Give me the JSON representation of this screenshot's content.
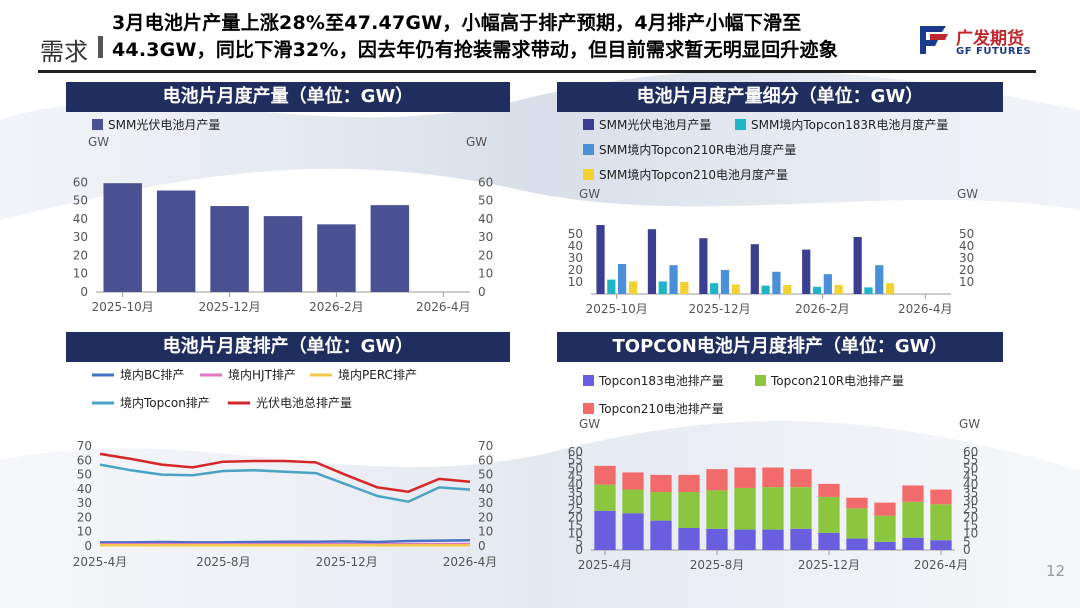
{
  "header": {
    "section": "需求",
    "line1": "3月电池片产量上涨28%至47.47GW，小幅高于排产预期，4月排产小幅下滑至",
    "line2": "44.3GW，同比下滑32%，因去年仍有抢装需求带动，但目前需求暂无明显回升迹象",
    "logo_cn": "广发期货",
    "logo_en": "GF FUTURES"
  },
  "page_number": "12",
  "colors": {
    "navy": "#1f2e5e",
    "accent_red": "#c0282d"
  },
  "chart_data": [
    {
      "id": "c1",
      "type": "bar",
      "title": "电池片月度产量（单位：GW）",
      "unit_left": "GW",
      "unit_right": "GW",
      "ylim": [
        0,
        70
      ],
      "yticks": [
        0,
        10,
        20,
        30,
        40,
        50,
        60
      ],
      "x_tick_labels": [
        "2025-10月",
        "2025-12月",
        "2026-2月",
        "2026-4月"
      ],
      "x_tick_index": [
        0,
        2,
        4,
        6
      ],
      "n_slots": 7,
      "series": [
        {
          "name": "SMM光伏电池月产量",
          "color": "#4a5192",
          "values": [
            59.5,
            55.5,
            47,
            41.5,
            37,
            47.5,
            null
          ]
        }
      ]
    },
    {
      "id": "c2",
      "type": "bar",
      "title": "电池片月度产量细分（单位：GW）",
      "unit_left": "GW",
      "unit_right": "GW",
      "ylim": [
        0,
        60
      ],
      "yticks": [
        10,
        20,
        30,
        40,
        50
      ],
      "x_tick_labels": [
        "2025-10月",
        "2025-12月",
        "2026-2月",
        "2026-4月"
      ],
      "x_tick_index": [
        0,
        2,
        4,
        6
      ],
      "n_slots": 7,
      "series": [
        {
          "name": "SMM光伏电池月产量",
          "color": "#3a3f8f",
          "values": [
            57.5,
            54,
            46.5,
            41.5,
            37,
            47.5,
            null
          ]
        },
        {
          "name": "SMM境内Topcon183R电池月度产量",
          "color": "#1fb5c4",
          "values": [
            12,
            10.5,
            9,
            7,
            6,
            5.5,
            null
          ]
        },
        {
          "name": "SMM境内Topcon210R电池月度产量",
          "color": "#4a90d9",
          "values": [
            25,
            24,
            20,
            18.5,
            16.5,
            24,
            null
          ]
        },
        {
          "name": "SMM境内Topcon210电池月度产量",
          "color": "#f2d230",
          "values": [
            10.5,
            10,
            8,
            7.5,
            7.5,
            9,
            null
          ]
        }
      ]
    },
    {
      "id": "c3",
      "type": "line",
      "title": "电池片月度排产（单位：GW）",
      "unit_left": "",
      "unit_right": "",
      "ylim": [
        0,
        70
      ],
      "yticks": [
        0,
        10,
        20,
        30,
        40,
        50,
        60,
        70
      ],
      "x": [
        0,
        1,
        2,
        3,
        4,
        5,
        6,
        7,
        8,
        9,
        10,
        11,
        12
      ],
      "x_tick_labels": [
        "2025-4月",
        "2025-8月",
        "2025-12月",
        "2026-4月"
      ],
      "x_tick_index": [
        0,
        4,
        8,
        12
      ],
      "series": [
        {
          "name": "境内BC排产",
          "color": "#4472c4",
          "values": [
            2.5,
            2.5,
            2.8,
            2.5,
            2.5,
            2.8,
            3,
            3,
            3.2,
            2.8,
            3.5,
            3.8,
            4
          ]
        },
        {
          "name": "境内HJT排产",
          "color": "#e377c2",
          "values": [
            1.2,
            1.2,
            1.3,
            1.2,
            1.2,
            1.2,
            1.3,
            1.3,
            1.2,
            1.2,
            1.3,
            1.3,
            1.4
          ]
        },
        {
          "name": "境内PERC排产",
          "color": "#f2c84b",
          "values": [
            0.5,
            0.5,
            0.5,
            0.5,
            0.5,
            0.5,
            0.5,
            0.5,
            0.5,
            0.5,
            0.5,
            0.5,
            0.5
          ]
        },
        {
          "name": "境内Topcon排产",
          "color": "#4ba3c3",
          "values": [
            57,
            53,
            50,
            49.5,
            52.5,
            53,
            52,
            51,
            43,
            35,
            31,
            41,
            39.5
          ]
        },
        {
          "name": "光伏电池总排产量",
          "color": "#d62728",
          "values": [
            64.5,
            61,
            57,
            55,
            59,
            59.5,
            59.5,
            58.5,
            49.5,
            41,
            38,
            47,
            45
          ]
        }
      ]
    },
    {
      "id": "c4",
      "type": "stacked_bar",
      "title": "TOPCON电池片月度排产（单位：GW）",
      "unit_left": "GW",
      "unit_right": "GW",
      "ylim": [
        0,
        60
      ],
      "yticks": [
        0,
        5,
        10,
        15,
        20,
        25,
        30,
        35,
        40,
        45,
        50,
        55,
        60
      ],
      "x_tick_labels": [
        "2025-4月",
        "2025-8月",
        "2025-12月",
        "2026-4月"
      ],
      "x_tick_index": [
        0,
        4,
        8,
        12
      ],
      "n_slots": 13,
      "series": [
        {
          "name": "Topcon183电池排产量",
          "color": "#6a5ee0",
          "values": [
            24,
            22.5,
            18,
            13.5,
            13,
            12.5,
            12.5,
            13,
            10.5,
            7,
            5,
            7.5,
            6
          ]
        },
        {
          "name": "Topcon210R电池排产量",
          "color": "#8cc63f",
          "values": [
            16,
            14.5,
            17.5,
            22,
            23.5,
            25.5,
            26,
            25.5,
            22,
            18.5,
            16,
            22,
            22
          ]
        },
        {
          "name": "Topcon210电池排产量",
          "color": "#f26b6b",
          "values": [
            11.5,
            10.5,
            10.5,
            10.5,
            13,
            12.5,
            12,
            11,
            8,
            6.5,
            8,
            10,
            9
          ]
        }
      ]
    }
  ]
}
